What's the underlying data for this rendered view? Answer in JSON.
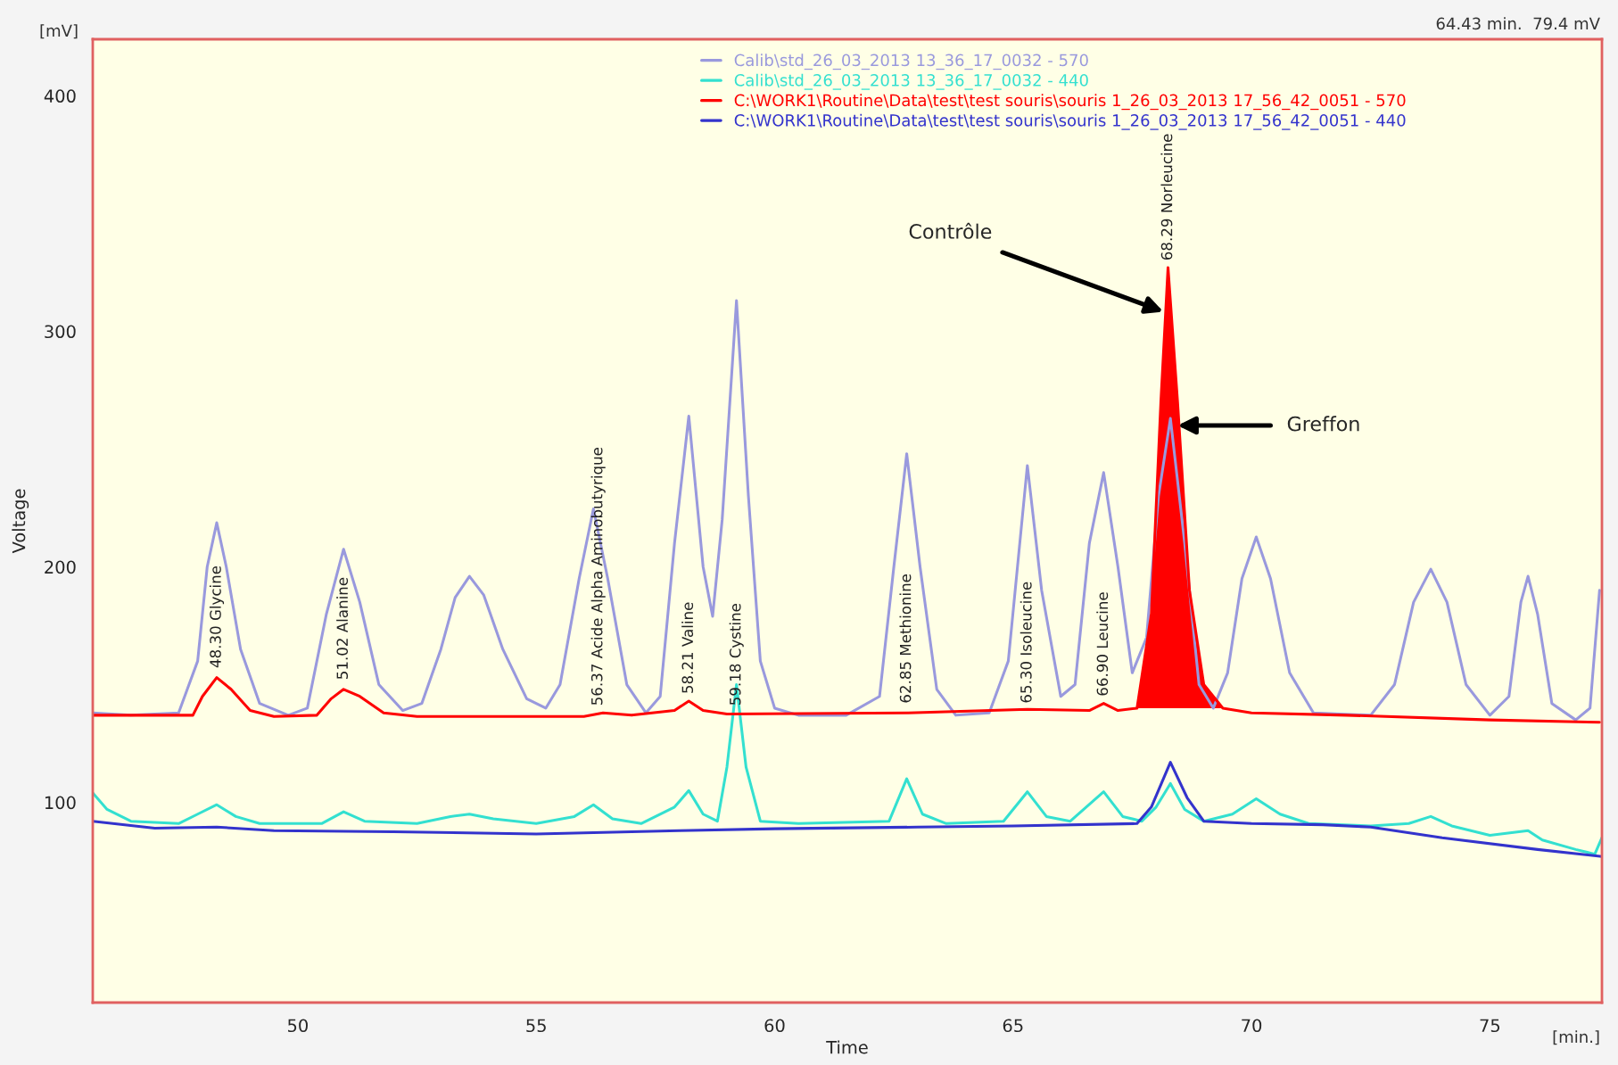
{
  "chart_data": {
    "type": "line",
    "xlabel": "Time",
    "ylabel": "Voltage",
    "xlim": [
      45.7,
      77.35
    ],
    "ylim": [
      15,
      424
    ],
    "xticks": [
      50,
      55,
      60,
      65,
      70,
      75
    ],
    "yticks": [
      100,
      200,
      300,
      400
    ],
    "grid": false,
    "legend": "top right",
    "marker": "none",
    "line_style": "solid",
    "series": [
      {
        "name": "Calib\\std_26_03_2013 13_36_17_0032 - 570",
        "color": "#9999dd",
        "x": [
          45.7,
          46.5,
          47.5,
          47.9,
          48.1,
          48.3,
          48.5,
          48.8,
          49.2,
          49.8,
          50.2,
          50.6,
          50.96,
          51.3,
          51.7,
          52.2,
          52.6,
          53.0,
          53.3,
          53.6,
          53.9,
          54.3,
          54.8,
          55.2,
          55.5,
          55.9,
          56.2,
          56.5,
          56.9,
          57.3,
          57.6,
          57.9,
          58.2,
          58.5,
          58.7,
          58.9,
          59.2,
          59.45,
          59.7,
          60.0,
          60.5,
          61.5,
          62.2,
          62.5,
          62.77,
          63.05,
          63.4,
          63.8,
          64.5,
          64.9,
          65.3,
          65.6,
          66.0,
          66.3,
          66.6,
          66.9,
          67.2,
          67.5,
          67.8,
          68.05,
          68.3,
          68.6,
          68.9,
          69.2,
          69.5,
          69.8,
          70.1,
          70.4,
          70.8,
          71.3,
          72.5,
          73.0,
          73.4,
          73.76,
          74.1,
          74.5,
          75.0,
          75.4,
          75.65,
          75.8,
          76.0,
          76.3,
          76.8,
          77.1,
          77.3
        ],
        "values": [
          138,
          137,
          138,
          160,
          200,
          218.7,
          200,
          165,
          142,
          137,
          140,
          180,
          207.5,
          185,
          150,
          139,
          142,
          165,
          187,
          196,
          188,
          165,
          144,
          140,
          150,
          195,
          224.6,
          195,
          150,
          138,
          145,
          210,
          264,
          200,
          179,
          220,
          313,
          230,
          160,
          140,
          137,
          137,
          145,
          200,
          248,
          200,
          148,
          137,
          138,
          160,
          243,
          190,
          145,
          150,
          210,
          240,
          200,
          155,
          170,
          230,
          263,
          210,
          150,
          140,
          155,
          195,
          212.7,
          195,
          155,
          138,
          137,
          150,
          185,
          199,
          185,
          150,
          137,
          145,
          185,
          196,
          180,
          142,
          135,
          140,
          190
        ]
      },
      {
        "name": "Calib\\std_26_03_2013 13_36_17_0032 - 440",
        "color": "#33e0d0",
        "x": [
          45.7,
          46.0,
          46.5,
          47.5,
          47.9,
          48.3,
          48.7,
          49.2,
          50.5,
          50.96,
          51.4,
          52.5,
          53.2,
          53.6,
          54.1,
          55.0,
          55.8,
          56.2,
          56.6,
          57.2,
          57.9,
          58.2,
          58.5,
          58.8,
          59.0,
          59.2,
          59.4,
          59.7,
          60.5,
          62.4,
          62.77,
          63.1,
          63.6,
          64.8,
          65.3,
          65.7,
          66.2,
          66.9,
          67.3,
          67.7,
          68.0,
          68.3,
          68.6,
          69.0,
          69.6,
          70.1,
          70.6,
          71.2,
          72.5,
          73.3,
          73.76,
          74.2,
          75.0,
          75.8,
          76.1,
          76.8,
          77.2,
          77.35
        ],
        "values": [
          104,
          97,
          92,
          91,
          95,
          99,
          94,
          91,
          91,
          96,
          92,
          91,
          94,
          95,
          93,
          91,
          94,
          99,
          93,
          91,
          98,
          105,
          95,
          92,
          115,
          150,
          115,
          92,
          91,
          92,
          110,
          95,
          91,
          92,
          104.5,
          94,
          92,
          104.5,
          94,
          92,
          98,
          108,
          97,
          92,
          95,
          101.5,
          95,
          91,
          90,
          91,
          94,
          90,
          86,
          88,
          84,
          80,
          78,
          85
        ]
      },
      {
        "name": "C:\\WORK1\\Routine\\Data\\test\\test souris\\souris 1_26_03_2013 17_56_42_0051 - 570",
        "color": "#ff0000",
        "x": [
          45.7,
          47.8,
          48.0,
          48.3,
          48.6,
          49.0,
          49.5,
          50.4,
          50.7,
          50.96,
          51.3,
          51.8,
          52.5,
          56.0,
          56.4,
          57.0,
          57.9,
          58.2,
          58.5,
          59.0,
          62.8,
          65.3,
          66.6,
          66.9,
          67.2,
          67.6,
          67.9,
          68.1,
          68.25,
          68.45,
          68.7,
          69.0,
          69.4,
          70.0,
          72.0,
          75.0,
          77.3
        ],
        "values": [
          137,
          137,
          145,
          153,
          148,
          139,
          136.5,
          137,
          144,
          148,
          145,
          138,
          136.5,
          136.5,
          138,
          137,
          139,
          143,
          139,
          137.5,
          138,
          139.5,
          139,
          142,
          139,
          140,
          180,
          270,
          327,
          270,
          190,
          150,
          140,
          138,
          137,
          135,
          134
        ]
      },
      {
        "type": "area",
        "color": "#ff0000",
        "x": [
          67.6,
          67.9,
          68.1,
          68.25,
          68.45,
          68.7,
          69.0,
          69.4
        ],
        "values": [
          140,
          180,
          270,
          327,
          270,
          190,
          150,
          140
        ]
      },
      {
        "name": "C:\\WORK1\\Routine\\Data\\test\\test souris\\souris 1_26_03_2013 17_56_42_0051 - 440",
        "color": "#3333cc",
        "x": [
          45.7,
          47.0,
          48.3,
          49.5,
          52,
          55,
          58,
          60,
          63,
          65,
          67.6,
          67.9,
          68.3,
          68.65,
          69.0,
          70.0,
          71.5,
          72.5,
          74,
          76,
          77.35
        ],
        "values": [
          92,
          89,
          89.5,
          88,
          87.5,
          86.6,
          88,
          88.8,
          89.5,
          90,
          91,
          98,
          117,
          102,
          92,
          91,
          90.5,
          89.5,
          85,
          80,
          77
        ]
      }
    ],
    "annotations": [
      "[mV]",
      "[min.]",
      "64.43 min.  79.4 mV",
      {
        "text": "48.30 Glycine",
        "x": 48.3,
        "y": 157
      },
      {
        "text": "51.02 Alanine",
        "x": 50.96,
        "y": 152
      },
      {
        "text": "56.37 Acide Alpha Aminobutyrique",
        "x": 56.3,
        "y": 141
      },
      {
        "text": "58.21 Valine",
        "x": 58.2,
        "y": 146
      },
      {
        "text": "59.18 Cystine",
        "x": 59.2,
        "y": 141
      },
      {
        "text": "62.85 Methionine",
        "x": 62.77,
        "y": 142
      },
      {
        "text": "65.30 Isoleucine",
        "x": 65.3,
        "y": 142
      },
      {
        "text": "66.90 Leucine",
        "x": 66.9,
        "y": 145
      },
      {
        "text": "68.29 Norleucine",
        "x": 68.25,
        "y": 330
      },
      {
        "text": "Contrôle",
        "x": 68.2,
        "y": 308
      },
      {
        "text": "Greffon",
        "x": 68.4,
        "y": 260
      }
    ]
  }
}
